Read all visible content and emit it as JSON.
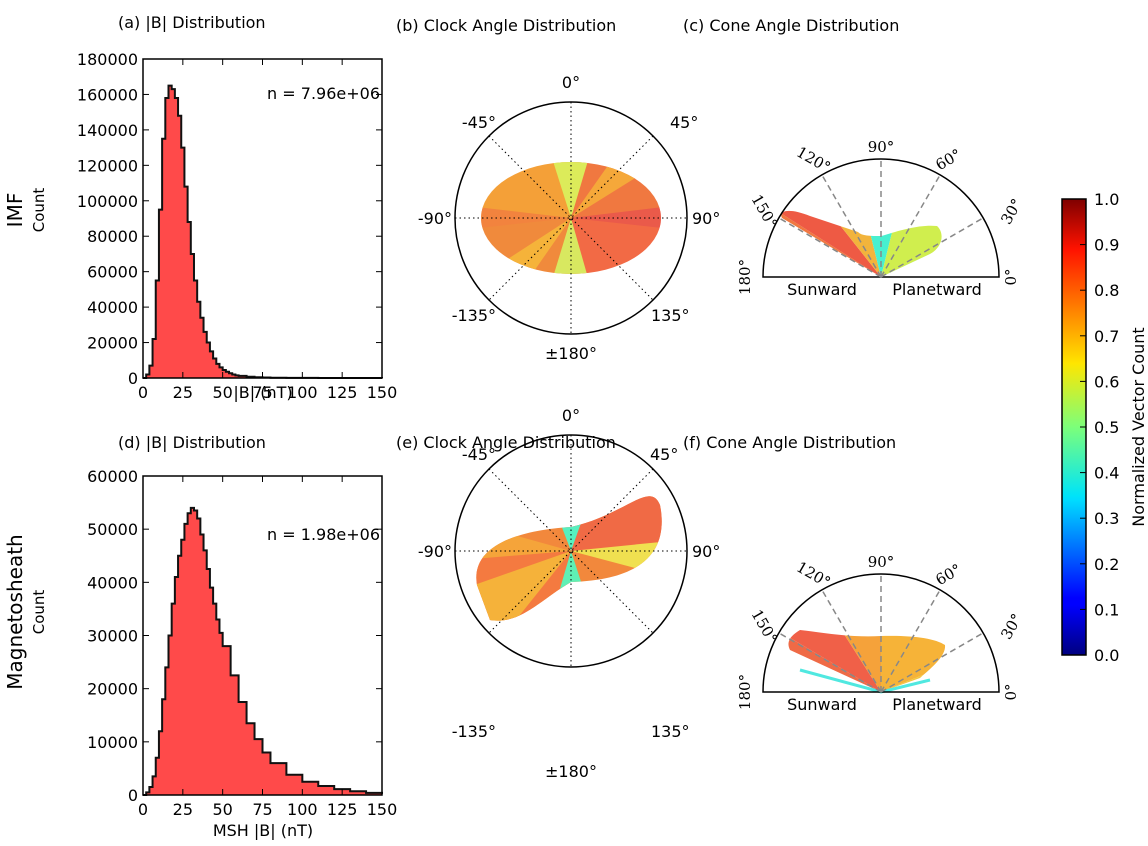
{
  "row_labels": [
    {
      "title": "IMF",
      "sub": "Count"
    },
    {
      "title": "Magnetosheath",
      "sub": "Count"
    }
  ],
  "chart_data": [
    {
      "type": "area",
      "panel": "(a)",
      "title": "(a) |B| Distribution",
      "xlabel": "|B| (nT)",
      "ylabel": "Count",
      "xlim": [
        0,
        150
      ],
      "ylim": [
        0,
        180000
      ],
      "xticks": [
        "0",
        "25",
        "50",
        "75",
        "100",
        "125",
        "150"
      ],
      "yticks": [
        "0",
        "20000",
        "40000",
        "60000",
        "80000",
        "100000",
        "120000",
        "140000",
        "160000",
        "180000"
      ],
      "annotation": "n = 7.96e+06",
      "fill_color": "#ff4a4a",
      "x": [
        0,
        2,
        4,
        6,
        8,
        10,
        12,
        14,
        16,
        18,
        20,
        22,
        24,
        26,
        28,
        30,
        32,
        34,
        36,
        38,
        40,
        42,
        44,
        46,
        48,
        50,
        52,
        54,
        56,
        58,
        60,
        65,
        70,
        75,
        80,
        90,
        100,
        110,
        120,
        130,
        140,
        150
      ],
      "values": [
        0,
        2000,
        7000,
        22000,
        55000,
        95000,
        135000,
        158000,
        165000,
        163000,
        158000,
        148000,
        130000,
        108000,
        88000,
        70000,
        55000,
        43000,
        34000,
        26000,
        20000,
        15000,
        11000,
        8000,
        6000,
        4500,
        3500,
        2700,
        2000,
        1500,
        1200,
        700,
        400,
        250,
        150,
        80,
        40,
        20,
        10,
        5,
        2,
        0
      ]
    },
    {
      "type": "heatmap",
      "panel": "(b)",
      "title": "(b) Clock Angle Distribution",
      "angle_labels": [
        "0°",
        "45°",
        "90°",
        "135°",
        "±180°",
        "-135°",
        "-90°",
        "-45°"
      ]
    },
    {
      "type": "heatmap",
      "panel": "(c)",
      "title": "(c) Cone Angle Distribution",
      "angle_labels": [
        "0°",
        "30°",
        "60°",
        "90°",
        "120°",
        "150°",
        "180°"
      ],
      "region_labels": [
        "Sunward",
        "Planetward"
      ]
    },
    {
      "type": "area",
      "panel": "(d)",
      "title": "(d) |B| Distribution",
      "xlabel": "MSH |B| (nT)",
      "ylabel": "Count",
      "xlim": [
        0,
        150
      ],
      "ylim": [
        0,
        60000
      ],
      "xticks": [
        "0",
        "25",
        "50",
        "75",
        "100",
        "125",
        "150"
      ],
      "yticks": [
        "0",
        "10000",
        "20000",
        "30000",
        "40000",
        "50000",
        "60000"
      ],
      "annotation": "n = 1.98e+06",
      "fill_color": "#ff4a4a",
      "x": [
        0,
        2,
        4,
        6,
        8,
        10,
        12,
        14,
        16,
        18,
        20,
        22,
        24,
        26,
        28,
        30,
        32,
        34,
        36,
        38,
        40,
        42,
        44,
        46,
        48,
        50,
        55,
        60,
        65,
        70,
        75,
        80,
        90,
        100,
        110,
        120,
        130,
        140,
        150
      ],
      "values": [
        0,
        500,
        1500,
        3500,
        7000,
        12000,
        18000,
        24000,
        30000,
        36000,
        41000,
        45000,
        48000,
        51000,
        53000,
        54000,
        53500,
        52000,
        49000,
        46000,
        42500,
        39000,
        36000,
        33000,
        30500,
        28000,
        22500,
        17500,
        13500,
        10500,
        8000,
        6000,
        3800,
        2500,
        1700,
        1100,
        700,
        400,
        200
      ]
    },
    {
      "type": "heatmap",
      "panel": "(e)",
      "title": "(e) Clock Angle Distribution",
      "angle_labels": [
        "0°",
        "45°",
        "90°",
        "135°",
        "±180°",
        "-135°",
        "-90°",
        "-45°"
      ]
    },
    {
      "type": "heatmap",
      "panel": "(f)",
      "title": "(f) Cone Angle Distribution",
      "angle_labels": [
        "0°",
        "30°",
        "60°",
        "90°",
        "120°",
        "150°",
        "180°"
      ],
      "region_labels": [
        "Sunward",
        "Planetward"
      ]
    }
  ],
  "colorbar": {
    "label": "Normalized Vector Count",
    "ticks": [
      "0.0",
      "0.1",
      "0.2",
      "0.3",
      "0.4",
      "0.5",
      "0.6",
      "0.7",
      "0.8",
      "0.9",
      "1.0"
    ],
    "range": [
      0,
      1
    ],
    "colormap": "jet"
  }
}
